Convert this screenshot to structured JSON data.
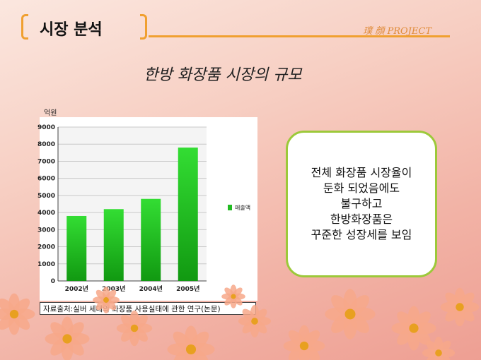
{
  "header": {
    "title": "시장 분석",
    "project_label": "璞 顔 PROJECT"
  },
  "subtitle": "한방 화장품 시장의 규모",
  "callout": {
    "lines": [
      "전체 화장품 시장율이",
      "둔화 되었음에도",
      "불구하고",
      "한방화장품은",
      "꾸준한 성장세를 보임"
    ],
    "border_color": "#9cc93a"
  },
  "source_note": "자료출처:실버 세대의 화장품 사용실태에 관한 연구(논문)",
  "chart_data": {
    "type": "bar",
    "categories": [
      "2002년",
      "2003년",
      "2004년",
      "2005년"
    ],
    "series": [
      {
        "name": "매출액",
        "values": [
          3800,
          4200,
          4800,
          7800
        ],
        "color": "#22bb22"
      }
    ],
    "ylabel": "억원",
    "yticks": [
      "0",
      "1000",
      "2000",
      "3000",
      "4000",
      "5000",
      "6000",
      "7000",
      "8000",
      "9000"
    ],
    "ylim": [
      0,
      9000
    ],
    "grid": true,
    "legend": "right"
  }
}
